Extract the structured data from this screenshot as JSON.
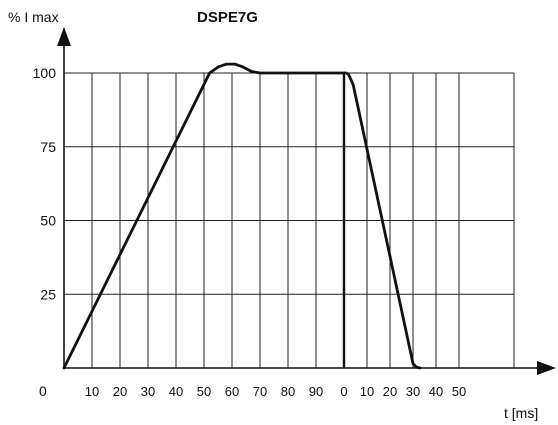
{
  "chart_data": {
    "type": "line",
    "title": "DSPE7G",
    "ylabel": "% I max",
    "xlabel": "t [ms]",
    "ylim": [
      0,
      100
    ],
    "y_ticks": [
      "100",
      "75",
      "50",
      "25"
    ],
    "origin_label": "0",
    "x_ticks_rise": [
      "10",
      "20",
      "30",
      "40",
      "50",
      "60",
      "70",
      "80",
      "90"
    ],
    "x_ticks_fall": [
      "0",
      "10",
      "20",
      "30",
      "40",
      "50"
    ],
    "grid": true,
    "series": [
      {
        "segment": "rise",
        "x_ms": [
          0,
          52,
          55,
          58,
          61,
          64,
          67,
          70,
          75,
          80,
          90,
          100
        ],
        "y_pct": [
          0,
          100,
          102,
          103,
          103,
          102,
          100.5,
          100,
          100,
          100,
          100,
          100
        ]
      },
      {
        "segment": "fall",
        "x_ms": [
          0,
          1,
          2,
          4,
          30,
          31.5,
          33
        ],
        "y_pct": [
          100,
          100,
          99.5,
          96,
          1.5,
          0.3,
          0
        ]
      }
    ]
  }
}
